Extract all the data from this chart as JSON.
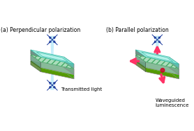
{
  "title_a": "(a) Perpendicular polarization",
  "title_b": "(b) Parallel polarization",
  "label_a": "Transmitted light",
  "label_b": "Waveguided\nluminescence",
  "bg_color": "#ffffff",
  "panel_top_color": "#7fffd4",
  "panel_top_edge": "#40c0a0",
  "panel_mid_color": "#90ee90",
  "panel_mid_hatch_color": "#00aa00",
  "panel_bot_color": "#88dd44",
  "panel_bot_hatch_color": "#44aa00",
  "light_beam_color": "#b0e8f8",
  "polarizer_arrow_color": "#1a3a9c",
  "waveguide_arrow_color": "#ff3366",
  "text_color": "#000000",
  "title_fontsize": 5.5,
  "label_fontsize": 5.0
}
